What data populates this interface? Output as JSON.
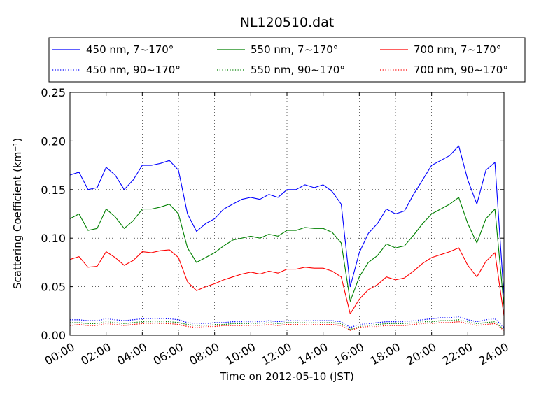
{
  "chart_data": {
    "type": "line",
    "title": "NL120510.dat",
    "xlabel": "Time on 2012-05-10 (JST)",
    "ylabel": "Scattering Coefficient (km⁻¹)",
    "xlim": [
      0,
      24
    ],
    "ylim": [
      0,
      0.25
    ],
    "grid": true,
    "legend_position": "top",
    "x_ticks": [
      "00:00",
      "02:00",
      "04:00",
      "06:00",
      "08:00",
      "10:00",
      "12:00",
      "14:00",
      "16:00",
      "18:00",
      "20:00",
      "22:00",
      "24:00"
    ],
    "y_ticks": [
      "0.00",
      "0.05",
      "0.10",
      "0.15",
      "0.20",
      "0.25"
    ],
    "x": [
      0,
      0.5,
      1,
      1.5,
      2,
      2.5,
      3,
      3.5,
      4,
      4.5,
      5,
      5.5,
      6,
      6.5,
      7,
      7.5,
      8,
      8.5,
      9,
      9.5,
      10,
      10.5,
      11,
      11.5,
      12,
      12.5,
      13,
      13.5,
      14,
      14.5,
      15,
      15.5,
      16,
      16.5,
      17,
      17.5,
      18,
      18.5,
      19,
      19.5,
      20,
      20.5,
      21,
      21.5,
      22,
      22.5,
      23,
      23.5,
      24
    ],
    "series": [
      {
        "name": "450 nm, 7∼170°",
        "color": "#0000ff",
        "style": "solid",
        "values": [
          0.165,
          0.168,
          0.15,
          0.152,
          0.173,
          0.165,
          0.15,
          0.16,
          0.175,
          0.175,
          0.177,
          0.18,
          0.17,
          0.125,
          0.107,
          0.115,
          0.12,
          0.13,
          0.135,
          0.14,
          0.142,
          0.14,
          0.145,
          0.142,
          0.15,
          0.15,
          0.155,
          0.152,
          0.155,
          0.148,
          0.135,
          0.05,
          0.085,
          0.105,
          0.115,
          0.13,
          0.125,
          0.128,
          0.145,
          0.16,
          0.175,
          0.18,
          0.185,
          0.195,
          0.16,
          0.135,
          0.17,
          0.178,
          0.04
        ]
      },
      {
        "name": "550 nm, 7∼170°",
        "color": "#008000",
        "style": "solid",
        "values": [
          0.12,
          0.125,
          0.108,
          0.11,
          0.13,
          0.122,
          0.11,
          0.118,
          0.13,
          0.13,
          0.132,
          0.135,
          0.125,
          0.09,
          0.075,
          0.08,
          0.085,
          0.092,
          0.098,
          0.1,
          0.102,
          0.1,
          0.104,
          0.102,
          0.108,
          0.108,
          0.111,
          0.11,
          0.11,
          0.106,
          0.095,
          0.035,
          0.06,
          0.075,
          0.082,
          0.094,
          0.09,
          0.092,
          0.103,
          0.115,
          0.125,
          0.13,
          0.135,
          0.142,
          0.115,
          0.095,
          0.12,
          0.13,
          0.03
        ]
      },
      {
        "name": "700 nm, 7∼170°",
        "color": "#ff0000",
        "style": "solid",
        "values": [
          0.078,
          0.081,
          0.07,
          0.071,
          0.086,
          0.08,
          0.072,
          0.077,
          0.086,
          0.085,
          0.087,
          0.088,
          0.08,
          0.055,
          0.046,
          0.05,
          0.053,
          0.057,
          0.06,
          0.063,
          0.065,
          0.063,
          0.066,
          0.064,
          0.068,
          0.068,
          0.07,
          0.069,
          0.069,
          0.066,
          0.06,
          0.022,
          0.037,
          0.047,
          0.052,
          0.06,
          0.057,
          0.059,
          0.066,
          0.074,
          0.08,
          0.083,
          0.086,
          0.09,
          0.072,
          0.06,
          0.076,
          0.085,
          0.02
        ]
      },
      {
        "name": "450 nm, 90∼170°",
        "color": "#0000ff",
        "style": "dotted",
        "values": [
          0.016,
          0.016,
          0.015,
          0.015,
          0.017,
          0.016,
          0.015,
          0.016,
          0.017,
          0.017,
          0.017,
          0.017,
          0.016,
          0.013,
          0.012,
          0.012,
          0.013,
          0.013,
          0.014,
          0.014,
          0.014,
          0.014,
          0.015,
          0.014,
          0.015,
          0.015,
          0.015,
          0.015,
          0.015,
          0.015,
          0.014,
          0.008,
          0.011,
          0.012,
          0.013,
          0.014,
          0.014,
          0.014,
          0.015,
          0.016,
          0.017,
          0.018,
          0.018,
          0.019,
          0.016,
          0.014,
          0.016,
          0.017,
          0.008
        ]
      },
      {
        "name": "550 nm, 90∼170°",
        "color": "#008000",
        "style": "dotted",
        "values": [
          0.013,
          0.013,
          0.012,
          0.012,
          0.014,
          0.013,
          0.012,
          0.013,
          0.014,
          0.014,
          0.014,
          0.014,
          0.013,
          0.011,
          0.01,
          0.01,
          0.011,
          0.011,
          0.012,
          0.012,
          0.012,
          0.012,
          0.013,
          0.012,
          0.013,
          0.013,
          0.013,
          0.013,
          0.013,
          0.013,
          0.012,
          0.006,
          0.009,
          0.01,
          0.011,
          0.012,
          0.012,
          0.012,
          0.013,
          0.014,
          0.014,
          0.015,
          0.015,
          0.016,
          0.014,
          0.012,
          0.013,
          0.014,
          0.006
        ]
      },
      {
        "name": "700 nm, 90∼170°",
        "color": "#ff0000",
        "style": "dotted",
        "values": [
          0.01,
          0.011,
          0.01,
          0.01,
          0.012,
          0.011,
          0.01,
          0.011,
          0.012,
          0.012,
          0.012,
          0.012,
          0.011,
          0.009,
          0.008,
          0.009,
          0.009,
          0.01,
          0.01,
          0.01,
          0.01,
          0.01,
          0.011,
          0.01,
          0.011,
          0.011,
          0.011,
          0.011,
          0.011,
          0.011,
          0.01,
          0.005,
          0.008,
          0.009,
          0.009,
          0.01,
          0.01,
          0.01,
          0.011,
          0.012,
          0.012,
          0.013,
          0.013,
          0.014,
          0.012,
          0.01,
          0.011,
          0.012,
          0.005
        ]
      }
    ]
  }
}
